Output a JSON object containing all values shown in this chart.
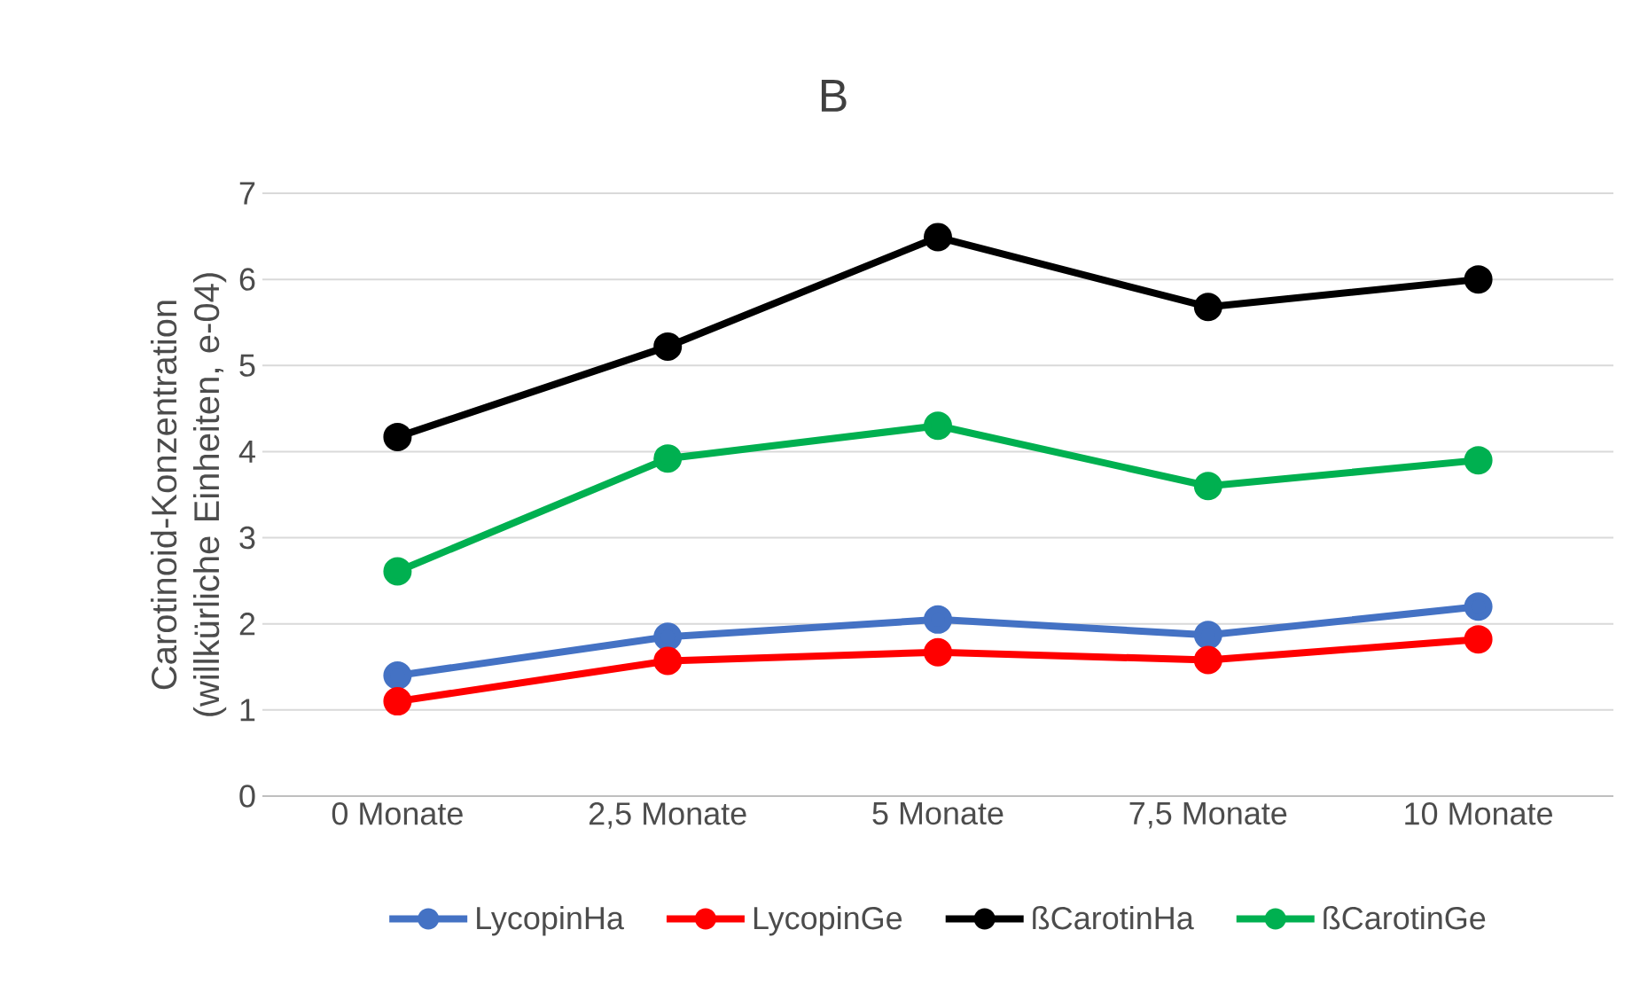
{
  "chart_data": {
    "type": "line",
    "title": "B",
    "ylabel": "Carotinoid-Konzentration (willkürliche Einheiten, e-04)",
    "categories": [
      "0 Monate",
      "2,5 Monate",
      "5 Monate",
      "7,5 Monate",
      "10 Monate"
    ],
    "series": [
      {
        "name": "LycopinHa",
        "color": "#4472c4",
        "values": [
          1.4,
          1.85,
          2.05,
          1.87,
          2.2
        ]
      },
      {
        "name": "LycopinGe",
        "color": "#ff0000",
        "values": [
          1.1,
          1.57,
          1.67,
          1.58,
          1.82
        ]
      },
      {
        "name": "ßCarotinHa",
        "color": "#000000",
        "values": [
          4.17,
          5.22,
          6.49,
          5.68,
          6.0
        ]
      },
      {
        "name": "ßCarotinGe",
        "color": "#00b050",
        "values": [
          2.61,
          3.92,
          4.3,
          3.6,
          3.9
        ]
      }
    ],
    "ylim": [
      0,
      7
    ],
    "yticks": [
      0,
      1,
      2,
      3,
      4,
      5,
      6,
      7
    ],
    "grid": "y",
    "legend": "bottom",
    "marker": "circle",
    "line_style": "solid"
  }
}
